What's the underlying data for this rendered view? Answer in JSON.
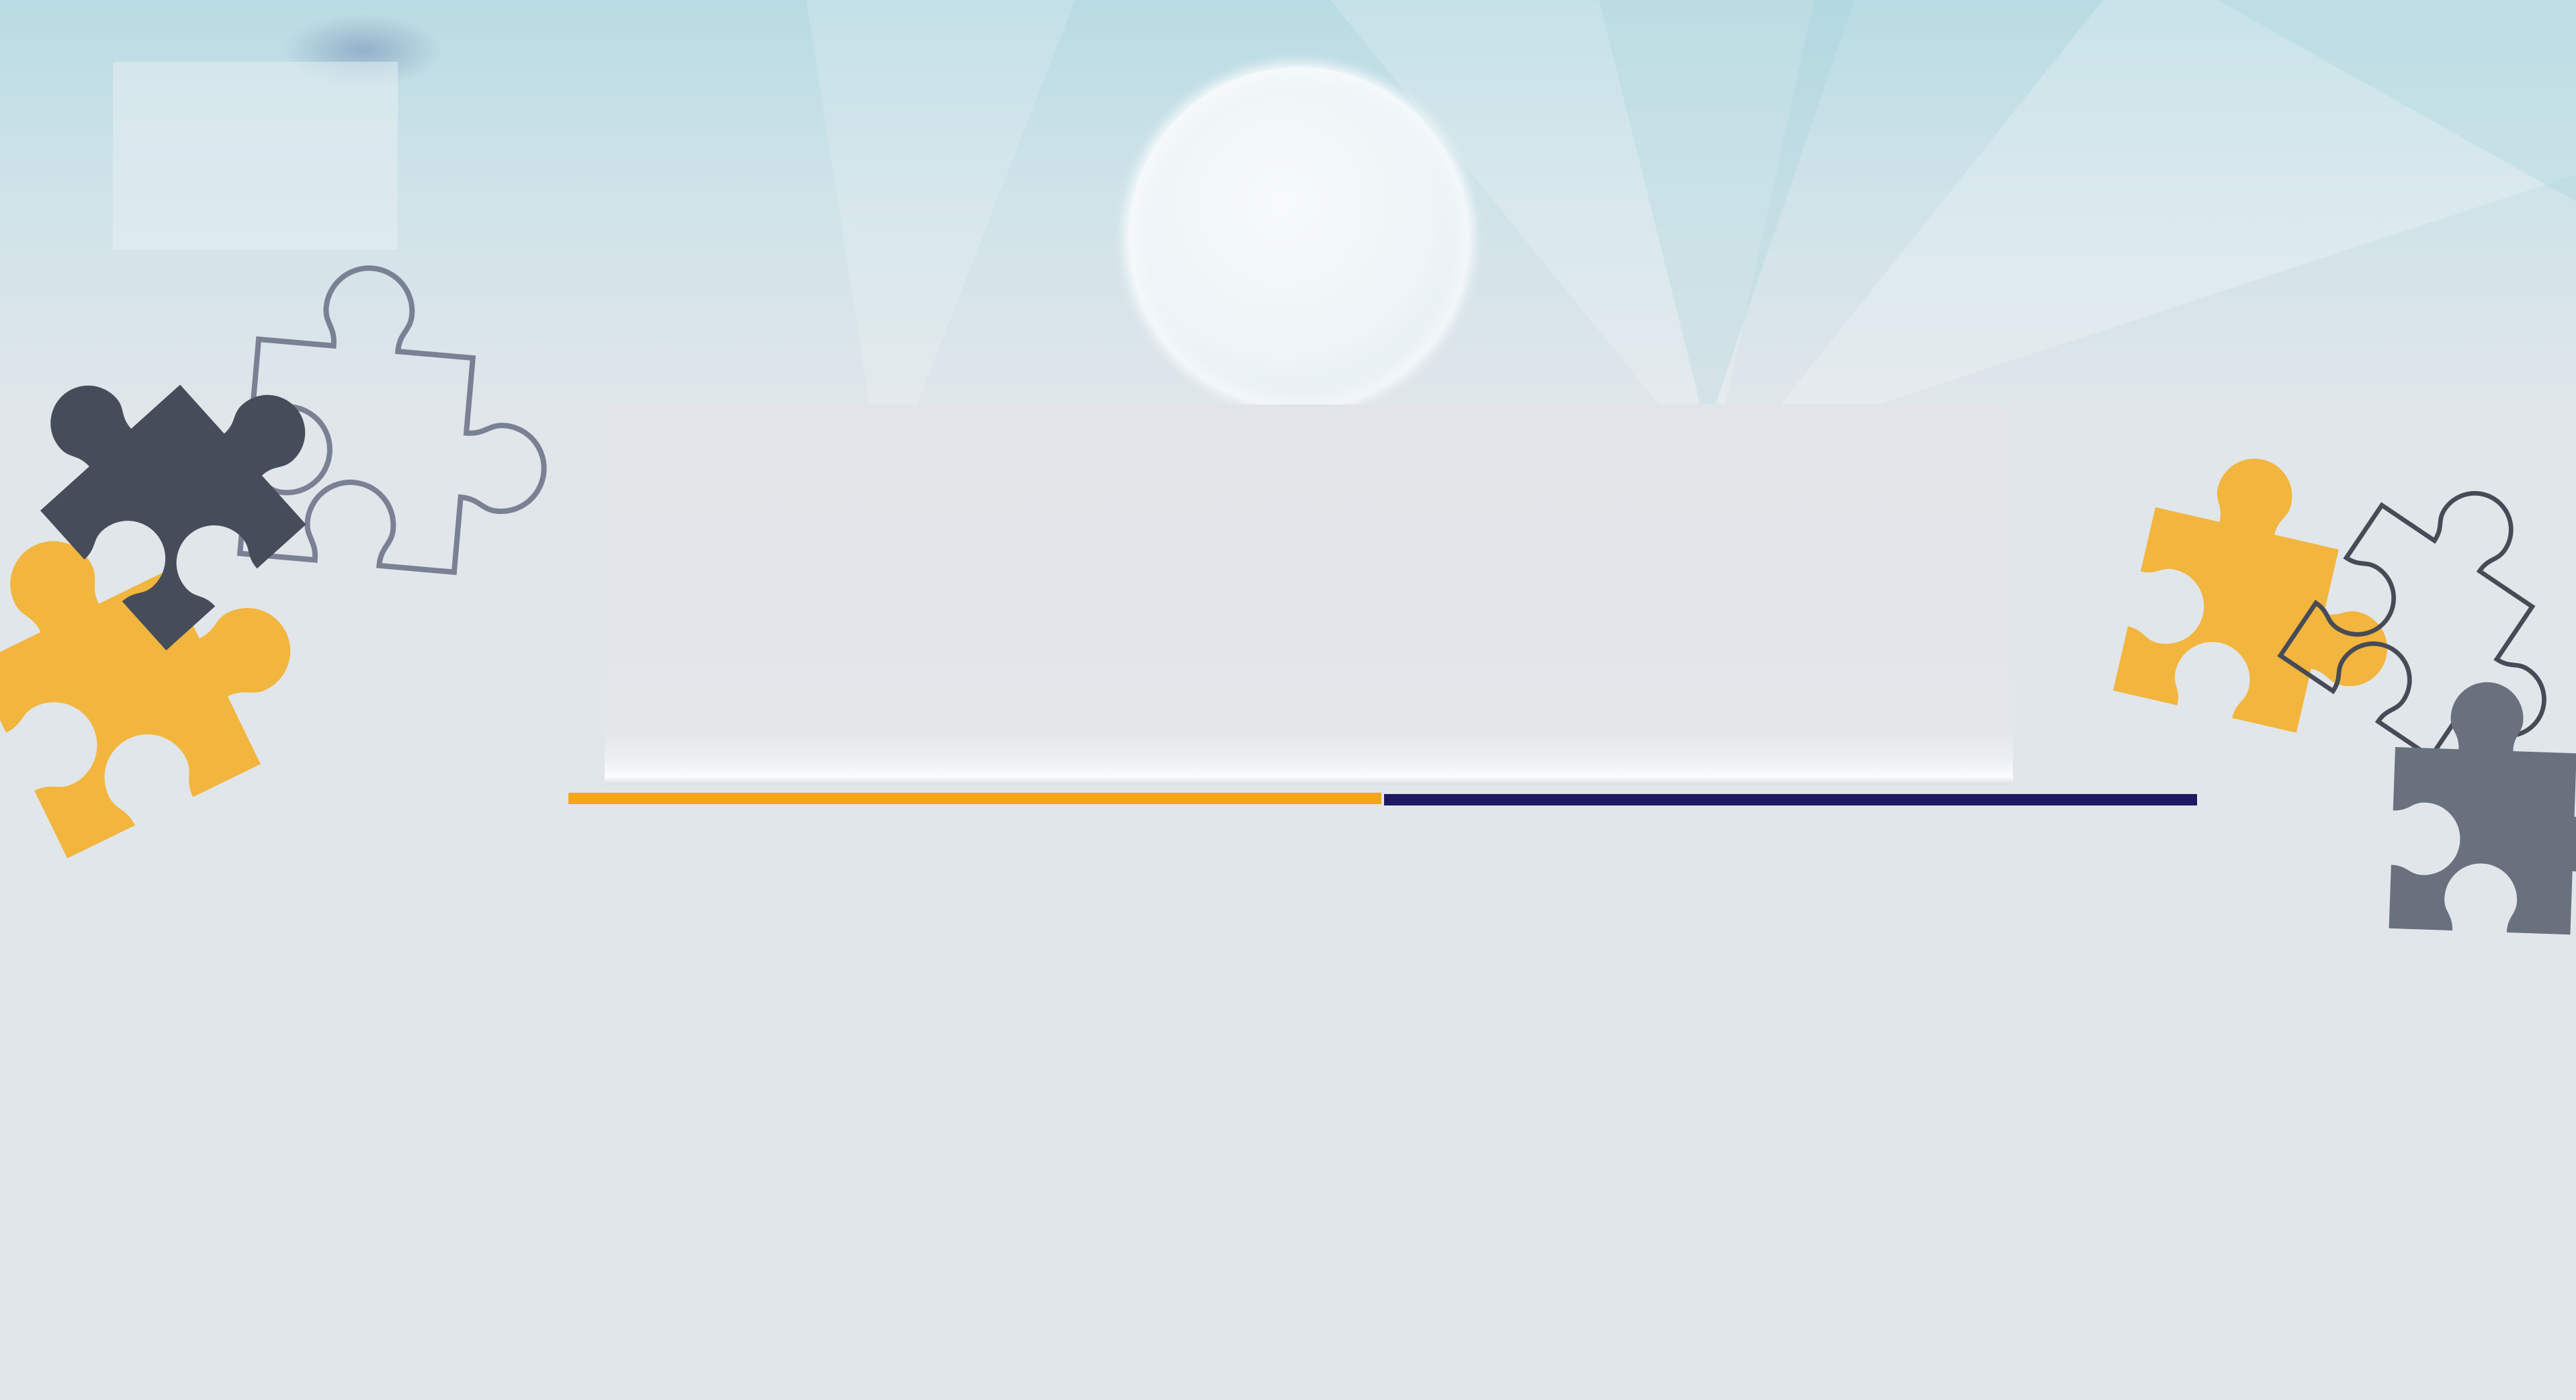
{
  "colors": {
    "background": "#e1e6ea",
    "sky_top": "#b9dbe3",
    "accent_orange": "#f2a71b",
    "accent_navy": "#1b1a63",
    "puzzle_yellow": "#f2b53e",
    "puzzle_dark": "#464d5a",
    "puzzle_slate": "#69717f",
    "puzzle_outline_light": "#7a8194",
    "puzzle_outline_dark": "#474b56"
  },
  "decorations": {
    "puzzle_pieces": [
      {
        "name": "puzzle-piece-dark-left",
        "style": "filled",
        "color": "dark"
      },
      {
        "name": "puzzle-piece-outline-left",
        "style": "outline",
        "color": "outline_light"
      },
      {
        "name": "puzzle-piece-yellow-left",
        "style": "filled",
        "color": "yellow"
      },
      {
        "name": "puzzle-piece-yellow-right",
        "style": "filled",
        "color": "yellow"
      },
      {
        "name": "puzzle-piece-outline-right",
        "style": "outline",
        "color": "outline_dark"
      },
      {
        "name": "puzzle-piece-slate-right",
        "style": "filled",
        "color": "slate"
      }
    ],
    "sphere": "glass-sphere",
    "divider": [
      "orange",
      "navy"
    ]
  }
}
